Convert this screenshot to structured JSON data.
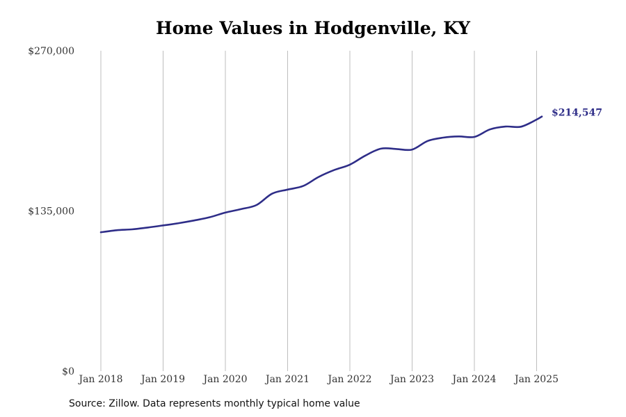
{
  "chart_data": {
    "type": "line",
    "title": "Home Values in Hodgenville, KY",
    "xlabel": "",
    "ylabel": "",
    "y_ticks": [
      {
        "value": 0,
        "label": "$0"
      },
      {
        "value": 135000,
        "label": "$135,000"
      },
      {
        "value": 270000,
        "label": "$270,000"
      }
    ],
    "ylim": [
      0,
      270000
    ],
    "x_ticks": [
      "Jan 2018",
      "Jan 2019",
      "Jan 2020",
      "Jan 2021",
      "Jan 2022",
      "Jan 2023",
      "Jan 2024",
      "Jan 2025"
    ],
    "xlim": [
      "2018-01",
      "2025-02"
    ],
    "grid": "vertical lines at each January",
    "series": [
      {
        "color": "#2e2d88",
        "points": [
          {
            "x": "2018-01",
            "y": 117000
          },
          {
            "x": "2018-04",
            "y": 118700
          },
          {
            "x": "2018-07",
            "y": 119500
          },
          {
            "x": "2018-10",
            "y": 121000
          },
          {
            "x": "2019-01",
            "y": 122800
          },
          {
            "x": "2019-04",
            "y": 124700
          },
          {
            "x": "2019-07",
            "y": 127000
          },
          {
            "x": "2019-10",
            "y": 129700
          },
          {
            "x": "2020-01",
            "y": 133600
          },
          {
            "x": "2020-04",
            "y": 136500
          },
          {
            "x": "2020-07",
            "y": 140000
          },
          {
            "x": "2020-10",
            "y": 149500
          },
          {
            "x": "2021-01",
            "y": 153000
          },
          {
            "x": "2021-04",
            "y": 156000
          },
          {
            "x": "2021-07",
            "y": 163700
          },
          {
            "x": "2021-10",
            "y": 169500
          },
          {
            "x": "2022-01",
            "y": 174000
          },
          {
            "x": "2022-04",
            "y": 181700
          },
          {
            "x": "2022-07",
            "y": 187500
          },
          {
            "x": "2022-10",
            "y": 187200
          },
          {
            "x": "2023-01",
            "y": 186700
          },
          {
            "x": "2023-04",
            "y": 194000
          },
          {
            "x": "2023-07",
            "y": 196800
          },
          {
            "x": "2023-10",
            "y": 197800
          },
          {
            "x": "2024-01",
            "y": 197400
          },
          {
            "x": "2024-04",
            "y": 203700
          },
          {
            "x": "2024-07",
            "y": 206100
          },
          {
            "x": "2024-10",
            "y": 206000
          },
          {
            "x": "2025-01",
            "y": 212000
          },
          {
            "x": "2025-02",
            "y": 214547
          }
        ]
      }
    ],
    "end_label": "$214,547",
    "source": "Source: Zillow. Data represents monthly typical home value"
  }
}
